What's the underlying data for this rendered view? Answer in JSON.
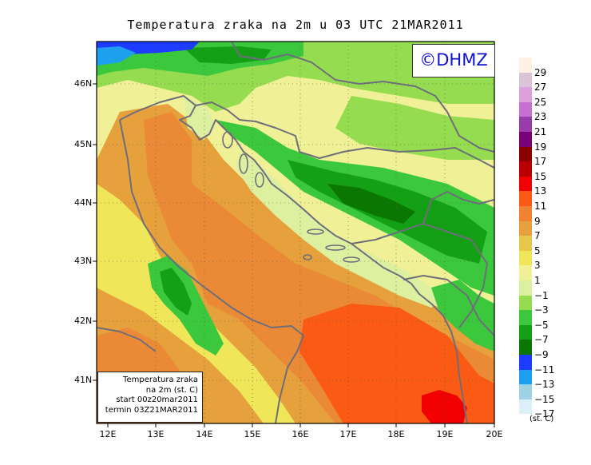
{
  "title": "Temperatura zraka na 2m u 03 UTC 21MAR2011",
  "logo": "©DHMZ",
  "info": {
    "line1": "Temperatura zraka",
    "line2": "na 2m (st. C)",
    "line3": "start 00z20mar2011",
    "line4": "termin 03Z21MAR2011"
  },
  "x_ticks": [
    "12E",
    "13E",
    "14E",
    "15E",
    "16E",
    "17E",
    "18E",
    "19E",
    "20E"
  ],
  "y_ticks": [
    "46N",
    "45N",
    "44N",
    "43N",
    "42N",
    "41N"
  ],
  "legend": {
    "labels": [
      "29",
      "27",
      "25",
      "23",
      "21",
      "19",
      "17",
      "15",
      "13",
      "11",
      "9",
      "7",
      "5",
      "3",
      "1",
      "−1",
      "−3",
      "−5",
      "−7",
      "−9",
      "−11",
      "−13",
      "−15",
      "−17"
    ],
    "colors": [
      "#fdf0e4",
      "#dcc4d8",
      "#dca0dc",
      "#c870d2",
      "#9a3caa",
      "#7a0078",
      "#8a0000",
      "#b80000",
      "#f00000",
      "#fa5a14",
      "#f08232",
      "#e6a03c",
      "#e6c84a",
      "#f0e65a",
      "#f0f096",
      "#dcf0a0",
      "#96dc50",
      "#3cc83c",
      "#14a014",
      "#0a7800",
      "#1e3cff",
      "#1ea0f0",
      "#a0d2e6",
      "#dcf0f8",
      "#ffffff"
    ],
    "units": "(st. C)"
  },
  "colors": {
    "frame": "#000000",
    "coast": "#6e6e7a",
    "logo_text": "#1010d0"
  }
}
